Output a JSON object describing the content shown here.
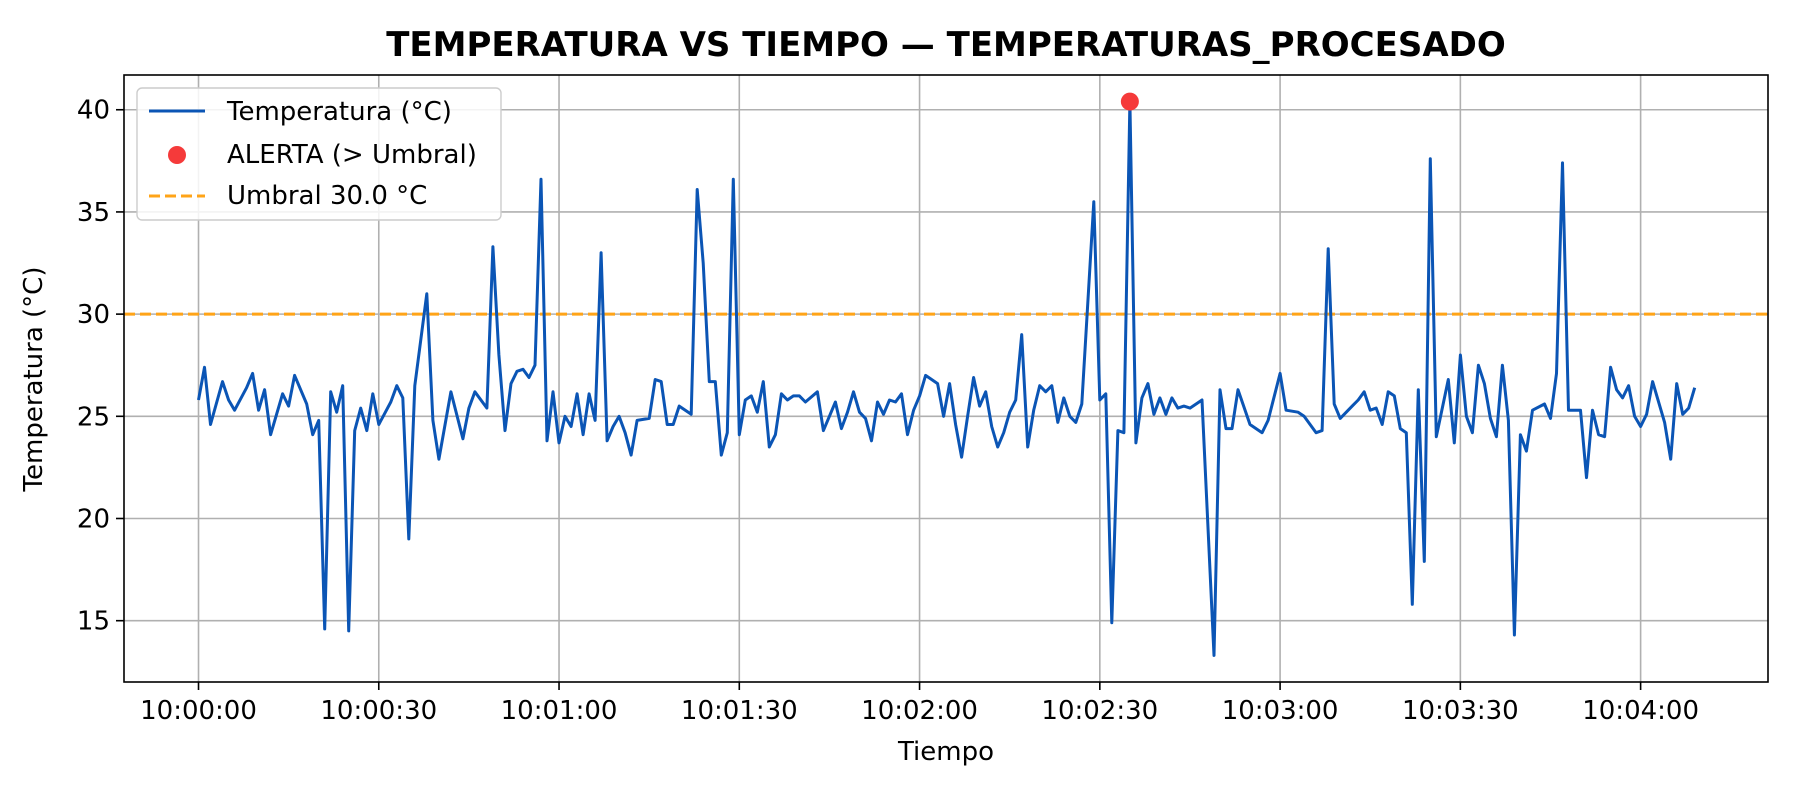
{
  "chart_data": {
    "type": "line",
    "title": "TEMPERATURA VS TIEMPO — TEMPERATURAS_PROCESADO",
    "xlabel": "Tiempo",
    "ylabel": "Temperatura (°C)",
    "x_ticks": [
      "10:00:00",
      "10:00:30",
      "10:01:00",
      "10:01:30",
      "10:02:00",
      "10:02:30",
      "10:03:00",
      "10:03:30",
      "10:04:00"
    ],
    "x_tick_seconds": [
      0,
      30,
      60,
      90,
      120,
      150,
      180,
      210,
      240
    ],
    "xlim_seconds": [
      -12.4,
      261.2
    ],
    "y_ticks": [
      15,
      20,
      25,
      30,
      35,
      40
    ],
    "ylim": [
      12,
      41.7
    ],
    "grid": true,
    "legend_position": "top-left",
    "series": [
      {
        "name": "Temperatura (°C)",
        "color": "#0b55b5",
        "points": [
          [
            0,
            25.8
          ],
          [
            1,
            27.4
          ],
          [
            2,
            24.6
          ],
          [
            4,
            26.7
          ],
          [
            5,
            25.8
          ],
          [
            6,
            25.3
          ],
          [
            8,
            26.4
          ],
          [
            9,
            27.1
          ],
          [
            10,
            25.3
          ],
          [
            11,
            26.3
          ],
          [
            12,
            24.1
          ],
          [
            14,
            26.1
          ],
          [
            15,
            25.5
          ],
          [
            16,
            27.0
          ],
          [
            18,
            25.6
          ],
          [
            19,
            24.1
          ],
          [
            20,
            24.8
          ],
          [
            21,
            14.6
          ],
          [
            22,
            26.2
          ],
          [
            23,
            25.2
          ],
          [
            24,
            26.5
          ],
          [
            25,
            14.5
          ],
          [
            26,
            24.3
          ],
          [
            27,
            25.4
          ],
          [
            28,
            24.3
          ],
          [
            29,
            26.1
          ],
          [
            30,
            24.6
          ],
          [
            32,
            25.7
          ],
          [
            33,
            26.5
          ],
          [
            34,
            25.9
          ],
          [
            35,
            19.0
          ],
          [
            36,
            26.5
          ],
          [
            38,
            31.0
          ],
          [
            39,
            24.8
          ],
          [
            40,
            22.9
          ],
          [
            42,
            26.2
          ],
          [
            44,
            23.9
          ],
          [
            45,
            25.4
          ],
          [
            46,
            26.2
          ],
          [
            48,
            25.4
          ],
          [
            49,
            33.3
          ],
          [
            50,
            28.0
          ],
          [
            51,
            24.3
          ],
          [
            52,
            26.6
          ],
          [
            53,
            27.2
          ],
          [
            54,
            27.3
          ],
          [
            55,
            26.9
          ],
          [
            56,
            27.5
          ],
          [
            57,
            36.6
          ],
          [
            58,
            23.8
          ],
          [
            59,
            26.2
          ],
          [
            60,
            23.7
          ],
          [
            61,
            25.0
          ],
          [
            62,
            24.5
          ],
          [
            63,
            26.1
          ],
          [
            64,
            24.1
          ],
          [
            65,
            26.1
          ],
          [
            66,
            24.8
          ],
          [
            67,
            33.0
          ],
          [
            68,
            23.8
          ],
          [
            69,
            24.5
          ],
          [
            70,
            25.0
          ],
          [
            71,
            24.2
          ],
          [
            72,
            23.1
          ],
          [
            73,
            24.8
          ],
          [
            75,
            24.9
          ],
          [
            76,
            26.8
          ],
          [
            77,
            26.7
          ],
          [
            78,
            24.6
          ],
          [
            79,
            24.6
          ],
          [
            80,
            25.5
          ],
          [
            82,
            25.1
          ],
          [
            83,
            36.1
          ],
          [
            84,
            32.5
          ],
          [
            85,
            26.7
          ],
          [
            86,
            26.7
          ],
          [
            87,
            23.1
          ],
          [
            88,
            24.2
          ],
          [
            89,
            36.6
          ],
          [
            90,
            24.1
          ],
          [
            91,
            25.8
          ],
          [
            92,
            26.0
          ],
          [
            93,
            25.2
          ],
          [
            94,
            26.7
          ],
          [
            95,
            23.5
          ],
          [
            96,
            24.1
          ],
          [
            97,
            26.1
          ],
          [
            98,
            25.8
          ],
          [
            99,
            26.0
          ],
          [
            100,
            26.0
          ],
          [
            101,
            25.7
          ],
          [
            103,
            26.2
          ],
          [
            104,
            24.3
          ],
          [
            105,
            25.0
          ],
          [
            106,
            25.7
          ],
          [
            107,
            24.4
          ],
          [
            108,
            25.2
          ],
          [
            109,
            26.2
          ],
          [
            110,
            25.2
          ],
          [
            111,
            24.9
          ],
          [
            112,
            23.8
          ],
          [
            113,
            25.7
          ],
          [
            114,
            25.1
          ],
          [
            115,
            25.8
          ],
          [
            116,
            25.7
          ],
          [
            117,
            26.1
          ],
          [
            118,
            24.1
          ],
          [
            119,
            25.3
          ],
          [
            120,
            26.0
          ],
          [
            121,
            27.0
          ],
          [
            123,
            26.6
          ],
          [
            124,
            25.0
          ],
          [
            125,
            26.6
          ],
          [
            126,
            24.6
          ],
          [
            127,
            23.0
          ],
          [
            128,
            25.0
          ],
          [
            129,
            26.9
          ],
          [
            130,
            25.5
          ],
          [
            131,
            26.2
          ],
          [
            132,
            24.5
          ],
          [
            133,
            23.5
          ],
          [
            134,
            24.2
          ],
          [
            135,
            25.2
          ],
          [
            136,
            25.8
          ],
          [
            137,
            29.0
          ],
          [
            138,
            23.5
          ],
          [
            139,
            25.3
          ],
          [
            140,
            26.5
          ],
          [
            141,
            26.2
          ],
          [
            142,
            26.5
          ],
          [
            143,
            24.7
          ],
          [
            144,
            25.9
          ],
          [
            145,
            25.0
          ],
          [
            146,
            24.7
          ],
          [
            147,
            25.6
          ],
          [
            149,
            35.5
          ],
          [
            150,
            25.8
          ],
          [
            151,
            26.1
          ],
          [
            152,
            14.9
          ],
          [
            153,
            24.3
          ],
          [
            154,
            24.2
          ],
          [
            155,
            40.4
          ],
          [
            156,
            23.7
          ],
          [
            157,
            25.9
          ],
          [
            158,
            26.6
          ],
          [
            159,
            25.1
          ],
          [
            160,
            25.9
          ],
          [
            161,
            25.1
          ],
          [
            162,
            25.9
          ],
          [
            163,
            25.4
          ],
          [
            164,
            25.5
          ],
          [
            165,
            25.4
          ],
          [
            167,
            25.8
          ],
          [
            169,
            13.3
          ],
          [
            170,
            26.3
          ],
          [
            171,
            24.4
          ],
          [
            172,
            24.4
          ],
          [
            173,
            26.3
          ],
          [
            175,
            24.6
          ],
          [
            177,
            24.2
          ],
          [
            178,
            24.8
          ],
          [
            180,
            27.1
          ],
          [
            181,
            25.3
          ],
          [
            183,
            25.2
          ],
          [
            184,
            25.0
          ],
          [
            186,
            24.2
          ],
          [
            187,
            24.3
          ],
          [
            188,
            33.2
          ],
          [
            189,
            25.6
          ],
          [
            190,
            24.9
          ],
          [
            192,
            25.5
          ],
          [
            193,
            25.8
          ],
          [
            194,
            26.2
          ],
          [
            195,
            25.3
          ],
          [
            196,
            25.4
          ],
          [
            197,
            24.6
          ],
          [
            198,
            26.2
          ],
          [
            199,
            26.0
          ],
          [
            200,
            24.4
          ],
          [
            201,
            24.2
          ],
          [
            202,
            15.8
          ],
          [
            203,
            26.3
          ],
          [
            204,
            17.9
          ],
          [
            205,
            37.6
          ],
          [
            206,
            24.0
          ],
          [
            208,
            26.8
          ],
          [
            209,
            23.7
          ],
          [
            210,
            28.0
          ],
          [
            211,
            25.0
          ],
          [
            212,
            24.2
          ],
          [
            213,
            27.5
          ],
          [
            214,
            26.6
          ],
          [
            215,
            24.9
          ],
          [
            216,
            24.0
          ],
          [
            217,
            27.5
          ],
          [
            218,
            24.8
          ],
          [
            219,
            14.3
          ],
          [
            220,
            24.1
          ],
          [
            221,
            23.3
          ],
          [
            222,
            25.3
          ],
          [
            224,
            25.6
          ],
          [
            225,
            24.9
          ],
          [
            226,
            27.1
          ],
          [
            227,
            37.4
          ],
          [
            228,
            25.3
          ],
          [
            230,
            25.3
          ],
          [
            231,
            22.0
          ],
          [
            232,
            25.3
          ],
          [
            233,
            24.1
          ],
          [
            234,
            24.0
          ],
          [
            235,
            27.4
          ],
          [
            236,
            26.3
          ],
          [
            237,
            25.9
          ],
          [
            238,
            26.5
          ],
          [
            239,
            25.0
          ],
          [
            240,
            24.5
          ],
          [
            241,
            25.1
          ],
          [
            242,
            26.7
          ],
          [
            244,
            24.7
          ],
          [
            245,
            22.9
          ],
          [
            246,
            26.6
          ],
          [
            247,
            25.1
          ],
          [
            248,
            25.4
          ],
          [
            249,
            26.4
          ]
        ]
      },
      {
        "name": "ALERTA (> Umbral)",
        "color": "#f53a3a",
        "points": [
          [
            155,
            40.4
          ]
        ]
      },
      {
        "name": "Umbral 30.0 °C",
        "color": "#ffa418",
        "value": 30.0
      }
    ]
  }
}
